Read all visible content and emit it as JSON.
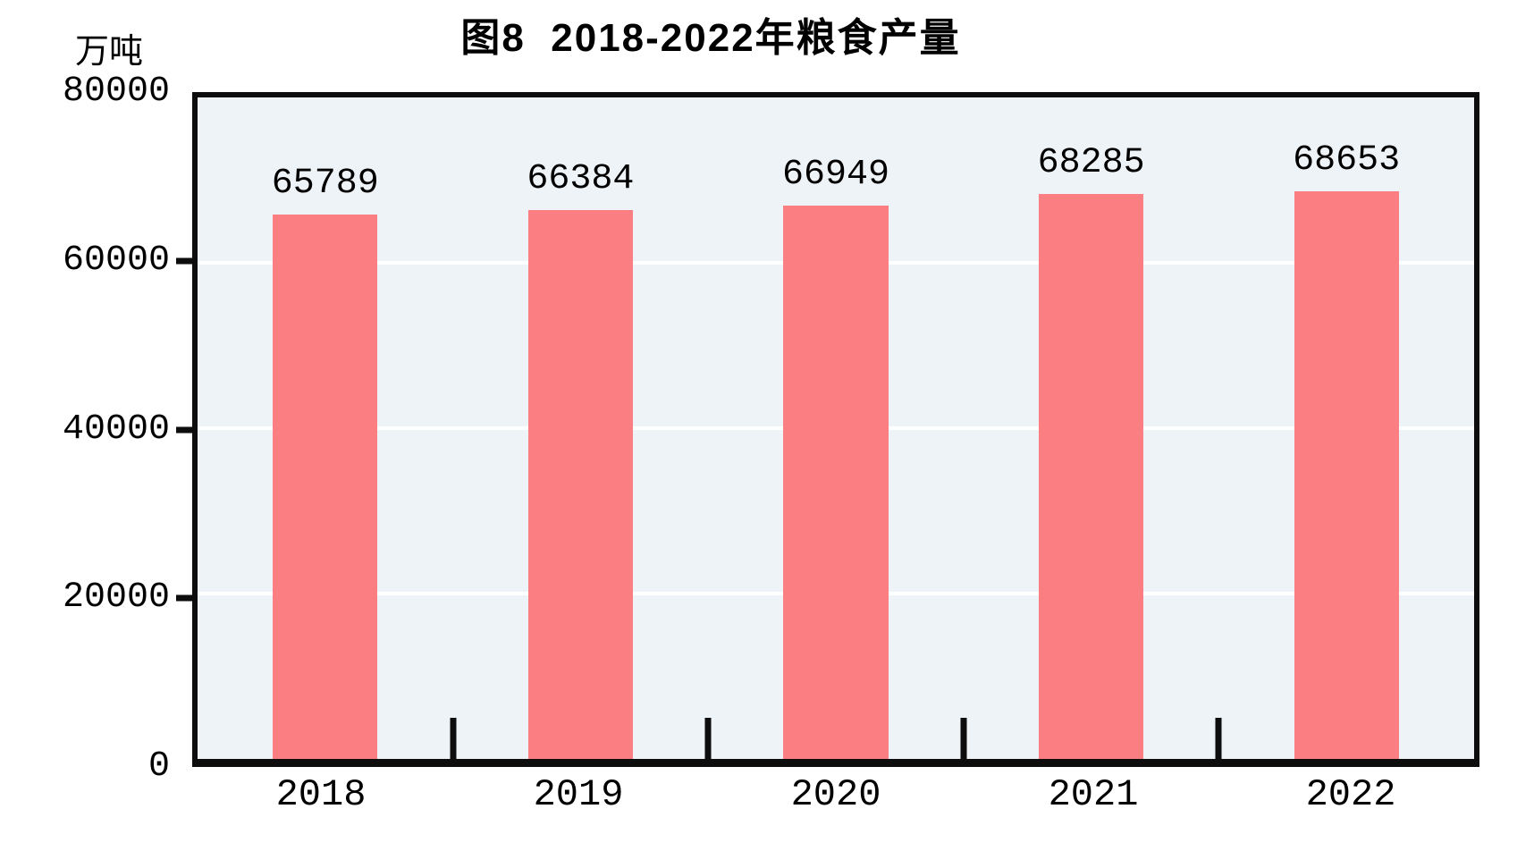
{
  "chart_data": {
    "type": "bar",
    "title": "图8  2018-2022年粮食产量",
    "unit_label": "万吨",
    "categories": [
      "2018",
      "2019",
      "2020",
      "2021",
      "2022"
    ],
    "values": [
      65789,
      66384,
      66949,
      68285,
      68653
    ],
    "value_labels": [
      "65789",
      "66384",
      "66949",
      "68285",
      "68653"
    ],
    "ylabel": "万吨",
    "xlabel": "",
    "ylim": [
      0,
      80000
    ],
    "ytick_labels": [
      "80000",
      "60000",
      "40000",
      "20000",
      "0"
    ],
    "gridlines_at": [
      20000,
      40000,
      60000
    ],
    "grid": "horizontal-white",
    "legend_position": "none",
    "bar_color": "#FA7E82",
    "plot_bg_color": "#EDF3F6",
    "axis_color": "#0D0D0D",
    "text_color": "#000000"
  }
}
